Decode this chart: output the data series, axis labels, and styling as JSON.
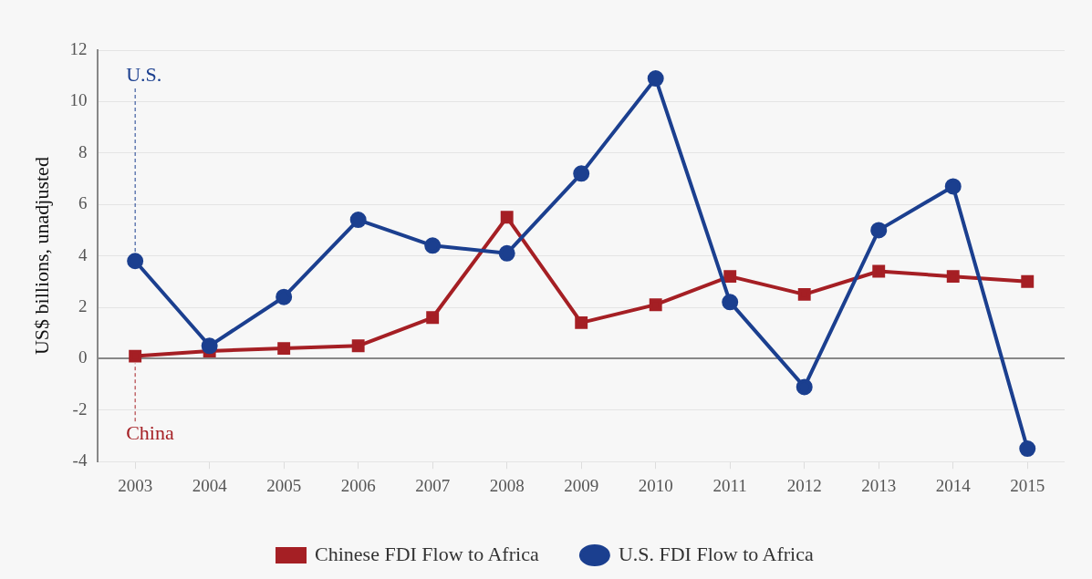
{
  "chart_data": {
    "type": "line",
    "ylabel": "US$ billions, unadjusted",
    "categories": [
      "2003",
      "2004",
      "2005",
      "2006",
      "2007",
      "2008",
      "2009",
      "2010",
      "2011",
      "2012",
      "2013",
      "2014",
      "2015"
    ],
    "series": [
      {
        "name": "Chinese FDI Flow to Africa",
        "color": "#a51f24",
        "marker": "square",
        "values": [
          0.1,
          0.3,
          0.4,
          0.5,
          1.6,
          5.5,
          1.4,
          2.1,
          3.2,
          2.5,
          3.4,
          3.2,
          3.0
        ]
      },
      {
        "name": "U.S. FDI Flow to Africa",
        "color": "#1b3f8f",
        "marker": "circle",
        "values": [
          3.8,
          0.5,
          2.4,
          5.4,
          4.4,
          4.1,
          7.2,
          10.9,
          2.2,
          -1.1,
          5.0,
          6.7,
          -3.5
        ]
      }
    ],
    "annotations": [
      {
        "text": "China",
        "x": "2003",
        "y": 0.1
      },
      {
        "text": "U.S.",
        "x": "2003",
        "y": 3.8
      }
    ],
    "ylim": [
      -4,
      12
    ],
    "yticks": [
      -4,
      -2,
      0,
      2,
      4,
      6,
      8,
      10,
      12
    ],
    "grid": "y",
    "legend": "bottom",
    "line_style": "solid"
  }
}
